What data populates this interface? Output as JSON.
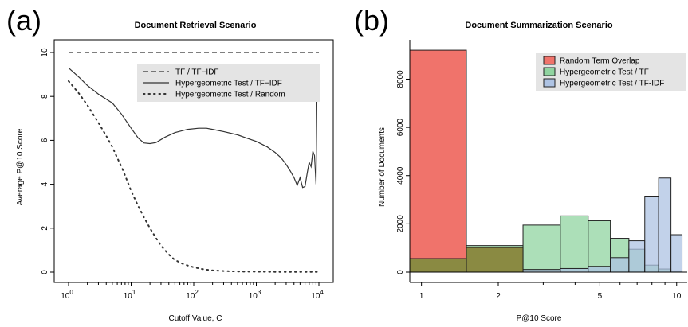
{
  "panels": {
    "a_label": "(a)",
    "b_label": "(b)"
  },
  "chart_data": [
    {
      "type": "line",
      "title": "Document Retrieval Scenario",
      "xlabel": "Cutoff Value, C",
      "ylabel": "Average P@10 Score",
      "xscale": "log",
      "xlim": [
        1,
        10000
      ],
      "ylim": [
        0,
        10
      ],
      "x_ticks": [
        {
          "label": "10",
          "sup": "0",
          "value": 1
        },
        {
          "label": "10",
          "sup": "1",
          "value": 10
        },
        {
          "label": "10",
          "sup": "2",
          "value": 100
        },
        {
          "label": "10",
          "sup": "3",
          "value": 1000
        },
        {
          "label": "10",
          "sup": "4",
          "value": 10000
        }
      ],
      "y_ticks": [
        "0",
        "2",
        "4",
        "6",
        "8",
        "10"
      ],
      "grid": false,
      "legend_position": "top-right",
      "series": [
        {
          "name": "TF / TF−IDF",
          "style": "dashed",
          "x": [
            1,
            10000
          ],
          "y": [
            10,
            10
          ]
        },
        {
          "name": "Hypergeometric Test / TF−IDF",
          "style": "solid",
          "x": [
            1,
            1.5,
            2,
            3,
            5,
            7,
            10,
            13,
            16,
            20,
            25,
            35,
            50,
            80,
            120,
            160,
            200,
            300,
            500,
            700,
            1000,
            1500,
            2000,
            2500,
            3000,
            3500,
            4000,
            4500,
            5000,
            5500,
            6000,
            6500,
            7000,
            7500,
            8000,
            8500,
            9000,
            9300
          ],
          "y": [
            9.3,
            8.85,
            8.5,
            8.1,
            7.7,
            7.2,
            6.55,
            6.1,
            5.88,
            5.85,
            5.9,
            6.15,
            6.35,
            6.5,
            6.55,
            6.55,
            6.5,
            6.4,
            6.25,
            6.1,
            5.95,
            5.7,
            5.45,
            5.2,
            4.9,
            4.6,
            4.3,
            3.95,
            4.3,
            3.85,
            3.9,
            4.5,
            5.0,
            4.8,
            5.5,
            5.3,
            4.0,
            8.0
          ]
        },
        {
          "name": "Hypergeometric Test / Random",
          "style": "dotted",
          "x": [
            1,
            1.5,
            2,
            3,
            4,
            5,
            6,
            7,
            8,
            10,
            13,
            16,
            20,
            25,
            30,
            40,
            50,
            70,
            100,
            150,
            200,
            300,
            500,
            700,
            1000,
            2000,
            5000,
            10000
          ],
          "y": [
            8.7,
            8.1,
            7.6,
            6.8,
            6.2,
            5.7,
            5.2,
            4.8,
            4.4,
            3.7,
            3.0,
            2.5,
            2.0,
            1.55,
            1.2,
            0.8,
            0.55,
            0.35,
            0.22,
            0.12,
            0.08,
            0.05,
            0.03,
            0.02,
            0.02,
            0.01,
            0.01,
            0.01
          ]
        }
      ]
    },
    {
      "type": "bar",
      "title": "Document Summarization Scenario",
      "xlabel": "P@10 Score",
      "ylabel": "Number of Documents",
      "xscale": "log",
      "xlim": [
        0.9,
        11
      ],
      "ylim": [
        0,
        9500
      ],
      "x_ticks": [
        "1",
        "2",
        "5",
        "10"
      ],
      "y_ticks": [
        "0",
        "2000",
        "4000",
        "6000",
        "8000"
      ],
      "legend_position": "top-right",
      "colors": {
        "random": "#f0736b",
        "tf": "#90d4a0",
        "tfidf": "#aec3e3",
        "overlap": "#8a8a42"
      },
      "series": [
        {
          "name": "Random Term Overlap",
          "bins": [
            {
              "x0": 0.9,
              "x1": 1.5,
              "value": 9200
            },
            {
              "x0": 1.5,
              "x1": 2.5,
              "value": 1020
            },
            {
              "x0": 2.5,
              "x1": 3.5,
              "value": 90
            },
            {
              "x0": 3.5,
              "x1": 4.5,
              "value": 50
            },
            {
              "x0": 4.5,
              "x1": 5.5,
              "value": 30
            },
            {
              "x0": 5.5,
              "x1": 6.5,
              "value": 20
            },
            {
              "x0": 6.5,
              "x1": 7.5,
              "value": 15
            },
            {
              "x0": 7.5,
              "x1": 8.5,
              "value": 10
            },
            {
              "x0": 8.5,
              "x1": 9.5,
              "value": 5
            },
            {
              "x0": 9.5,
              "x1": 10.5,
              "value": 5
            }
          ]
        },
        {
          "name": "Hypergeometric Test / TF",
          "bins": [
            {
              "x0": 0.9,
              "x1": 1.5,
              "value": 560
            },
            {
              "x0": 1.5,
              "x1": 2.5,
              "value": 1100
            },
            {
              "x0": 2.5,
              "x1": 3.5,
              "value": 1950
            },
            {
              "x0": 3.5,
              "x1": 4.5,
              "value": 2330
            },
            {
              "x0": 4.5,
              "x1": 5.5,
              "value": 2130
            },
            {
              "x0": 5.5,
              "x1": 6.5,
              "value": 1400
            },
            {
              "x0": 6.5,
              "x1": 7.5,
              "value": 950
            },
            {
              "x0": 7.5,
              "x1": 8.5,
              "value": 290
            },
            {
              "x0": 8.5,
              "x1": 9.5,
              "value": 130
            },
            {
              "x0": 9.5,
              "x1": 10.5,
              "value": 40
            }
          ]
        },
        {
          "name": "Hypergeometric Test / TF-IDF",
          "bins": [
            {
              "x0": 0.9,
              "x1": 1.5,
              "value": 0
            },
            {
              "x0": 1.5,
              "x1": 2.5,
              "value": 0
            },
            {
              "x0": 2.5,
              "x1": 3.5,
              "value": 110
            },
            {
              "x0": 3.5,
              "x1": 4.5,
              "value": 150
            },
            {
              "x0": 4.5,
              "x1": 5.5,
              "value": 240
            },
            {
              "x0": 5.5,
              "x1": 6.5,
              "value": 600
            },
            {
              "x0": 6.5,
              "x1": 7.5,
              "value": 1300
            },
            {
              "x0": 7.5,
              "x1": 8.5,
              "value": 3150
            },
            {
              "x0": 8.5,
              "x1": 9.5,
              "value": 3900
            },
            {
              "x0": 9.5,
              "x1": 10.5,
              "value": 1550
            }
          ]
        }
      ]
    }
  ]
}
